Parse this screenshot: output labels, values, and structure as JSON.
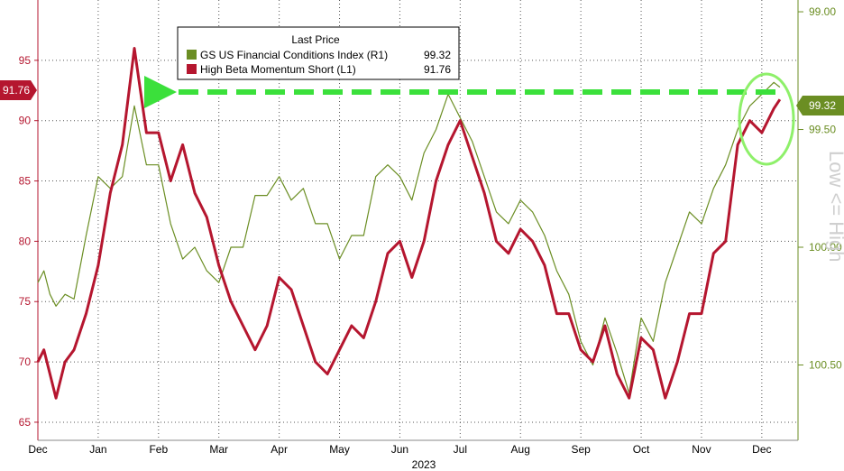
{
  "chart_data": {
    "type": "line",
    "x_axis": {
      "label": "2023",
      "ticks": [
        "Dec",
        "Jan",
        "Feb",
        "Mar",
        "Apr",
        "May",
        "Jun",
        "Jul",
        "Aug",
        "Sep",
        "Oct",
        "Nov",
        "Dec"
      ]
    },
    "y_left": {
      "range": [
        63.5,
        100
      ],
      "ticks": [
        "65",
        "70",
        "75",
        "80",
        "85",
        "90",
        "95"
      ],
      "tick_values": [
        65,
        70,
        75,
        80,
        85,
        90,
        95
      ]
    },
    "y_right": {
      "range": [
        100.82,
        98.95
      ],
      "ticks": [
        "99.00",
        "99.50",
        "100.00",
        "100.50"
      ],
      "tick_values": [
        99.0,
        99.5,
        100.0,
        100.5
      ],
      "inverted": true,
      "side_label": "Low <= High"
    },
    "legend": {
      "title": "Last Price",
      "entries": [
        {
          "label": "GS US Financial Conditions Index  (R1)",
          "value": "99.32"
        },
        {
          "label": "High Beta Momentum Short  (L1)",
          "value": "91.76"
        }
      ]
    },
    "last_value_badges": {
      "left": "91.76",
      "right": "99.32"
    },
    "series": [
      {
        "name": "High Beta Momentum Short  (L1)",
        "axis": "left",
        "color": "#b5162f",
        "x": [
          0,
          0.1,
          0.2,
          0.3,
          0.45,
          0.6,
          0.8,
          1.0,
          1.2,
          1.4,
          1.6,
          1.8,
          2.0,
          2.2,
          2.4,
          2.6,
          2.8,
          3.0,
          3.2,
          3.4,
          3.6,
          3.8,
          4.0,
          4.2,
          4.4,
          4.6,
          4.8,
          5.0,
          5.2,
          5.4,
          5.6,
          5.8,
          6.0,
          6.2,
          6.4,
          6.6,
          6.8,
          7.0,
          7.2,
          7.4,
          7.6,
          7.8,
          8.0,
          8.2,
          8.4,
          8.6,
          8.8,
          9.0,
          9.2,
          9.4,
          9.6,
          9.8,
          10.0,
          10.2,
          10.4,
          10.6,
          10.8,
          11.0,
          11.2,
          11.4,
          11.6,
          11.8,
          12.0,
          12.2,
          12.3
        ],
        "y": [
          70,
          71,
          69,
          67,
          70,
          71,
          74,
          78,
          84,
          88,
          96,
          89,
          89,
          85,
          88,
          84,
          82,
          78,
          75,
          73,
          71,
          73,
          77,
          76,
          73,
          70,
          69,
          71,
          73,
          72,
          75,
          79,
          80,
          77,
          80,
          85,
          88,
          90,
          87,
          84,
          80,
          79,
          81,
          80,
          78,
          74,
          74,
          71,
          70,
          73,
          69,
          67,
          72,
          71,
          67,
          70,
          74,
          74,
          79,
          80,
          88,
          90,
          89,
          91,
          91.76
        ]
      },
      {
        "name": "GS US Financial Conditions Index  (R1)",
        "axis": "right",
        "color": "#6b8e23",
        "x": [
          0,
          0.1,
          0.2,
          0.3,
          0.45,
          0.6,
          0.8,
          1.0,
          1.2,
          1.4,
          1.6,
          1.8,
          2.0,
          2.2,
          2.4,
          2.6,
          2.8,
          3.0,
          3.2,
          3.4,
          3.6,
          3.8,
          4.0,
          4.2,
          4.4,
          4.6,
          4.8,
          5.0,
          5.2,
          5.4,
          5.6,
          5.8,
          6.0,
          6.2,
          6.4,
          6.6,
          6.8,
          7.0,
          7.2,
          7.4,
          7.6,
          7.8,
          8.0,
          8.2,
          8.4,
          8.6,
          8.8,
          9.0,
          9.2,
          9.4,
          9.6,
          9.8,
          10.0,
          10.2,
          10.4,
          10.6,
          10.8,
          11.0,
          11.2,
          11.4,
          11.6,
          11.8,
          12.0,
          12.2,
          12.3
        ],
        "y": [
          100.15,
          100.1,
          100.2,
          100.25,
          100.2,
          100.22,
          99.95,
          99.7,
          99.75,
          99.7,
          99.4,
          99.65,
          99.65,
          99.9,
          100.05,
          100.0,
          100.1,
          100.15,
          100.0,
          100.0,
          99.78,
          99.78,
          99.7,
          99.8,
          99.75,
          99.9,
          99.9,
          100.05,
          99.95,
          99.95,
          99.7,
          99.65,
          99.7,
          99.8,
          99.6,
          99.5,
          99.35,
          99.45,
          99.55,
          99.7,
          99.85,
          99.9,
          99.8,
          99.85,
          99.95,
          100.1,
          100.2,
          100.4,
          100.5,
          100.3,
          100.45,
          100.62,
          100.3,
          100.4,
          100.15,
          100.0,
          99.85,
          99.9,
          99.75,
          99.65,
          99.5,
          99.4,
          99.35,
          99.3,
          99.32
        ]
      }
    ]
  }
}
